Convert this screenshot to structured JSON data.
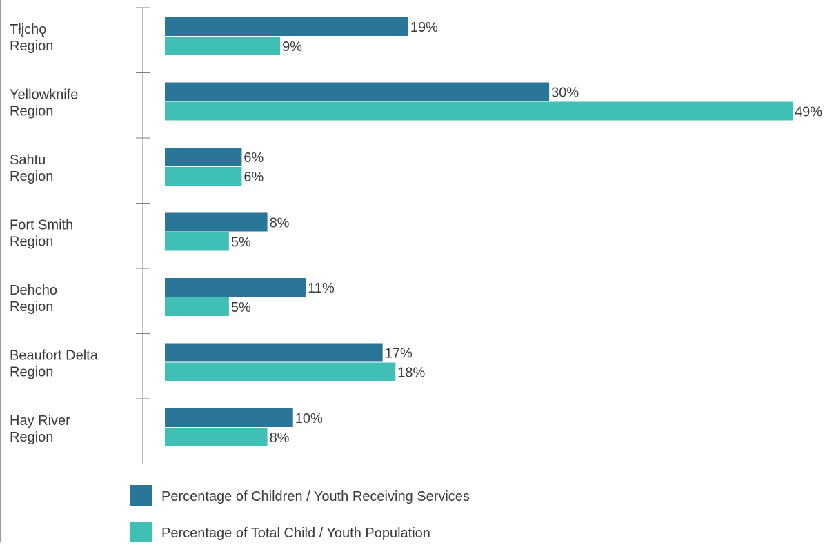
{
  "chart_data": {
    "type": "bar",
    "orientation": "horizontal",
    "categories": [
      [
        "Tłįchǫ",
        "Region"
      ],
      [
        "Yellowknife",
        "Region"
      ],
      [
        "Sahtu",
        "Region"
      ],
      [
        "Fort Smith",
        "Region"
      ],
      [
        "Dehcho",
        "Region"
      ],
      [
        "Beaufort Delta",
        "Region"
      ],
      [
        "Hay River",
        "Region"
      ]
    ],
    "series": [
      {
        "name": "Percentage of Children / Youth Receiving Services",
        "color": "#2a7699",
        "values": [
          19,
          30,
          6,
          8,
          11,
          17,
          10
        ],
        "labels": [
          "19%",
          "30%",
          "6%",
          "8%",
          "11%",
          "17%",
          "10%"
        ]
      },
      {
        "name": "Percentage of Total Child / Youth Population",
        "color": "#40c0b5",
        "values": [
          9,
          49,
          6,
          5,
          5,
          18,
          8
        ],
        "labels": [
          "9%",
          "49%",
          "6%",
          "5%",
          "5%",
          "18%",
          "8%"
        ]
      }
    ],
    "xlim": [
      0,
      49
    ],
    "grid": false,
    "legend_position": "bottom"
  }
}
